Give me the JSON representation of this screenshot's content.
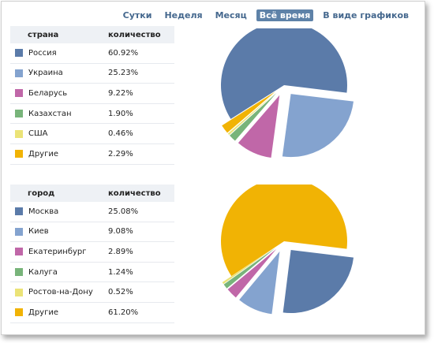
{
  "tabs": [
    {
      "label": "Сутки",
      "active": false
    },
    {
      "label": "Неделя",
      "active": false
    },
    {
      "label": "Месяц",
      "active": false
    },
    {
      "label": "Всё время",
      "active": true
    },
    {
      "label": "В виде графиков",
      "active": false
    }
  ],
  "country_table": {
    "col1": "страна",
    "col2": "количество",
    "rows": [
      {
        "label": "Россия",
        "value": "60.92%",
        "color": "#5b7ba9"
      },
      {
        "label": "Украина",
        "value": "25.23%",
        "color": "#84a3cf"
      },
      {
        "label": "Беларусь",
        "value": "9.22%",
        "color": "#c067a8"
      },
      {
        "label": "Казахстан",
        "value": "1.90%",
        "color": "#78b47a"
      },
      {
        "label": "США",
        "value": "0.46%",
        "color": "#ebe377"
      },
      {
        "label": "Другие",
        "value": "2.29%",
        "color": "#f1b304"
      }
    ]
  },
  "city_table": {
    "col1": "город",
    "col2": "количество",
    "rows": [
      {
        "label": "Москва",
        "value": "25.08%",
        "color": "#5b7ba9"
      },
      {
        "label": "Киев",
        "value": "9.08%",
        "color": "#84a3cf"
      },
      {
        "label": "Екатеринбург",
        "value": "2.89%",
        "color": "#c067a8"
      },
      {
        "label": "Калуга",
        "value": "1.24%",
        "color": "#78b47a"
      },
      {
        "label": "Ростов-на-Дону",
        "value": "0.52%",
        "color": "#ebe377"
      },
      {
        "label": "Другие",
        "value": "61.20%",
        "color": "#f1b304"
      }
    ]
  },
  "chart_data": [
    {
      "type": "pie",
      "categories": [
        "Россия",
        "Украина",
        "Беларусь",
        "Казахстан",
        "США",
        "Другие"
      ],
      "values": [
        60.92,
        25.23,
        9.22,
        1.9,
        0.46,
        2.29
      ],
      "colors": [
        "#5b7ba9",
        "#84a3cf",
        "#c067a8",
        "#78b47a",
        "#ebe377",
        "#f1b304"
      ]
    },
    {
      "type": "pie",
      "categories": [
        "Москва",
        "Киев",
        "Екатеринбург",
        "Калуга",
        "Ростов-на-Дону",
        "Другие"
      ],
      "values": [
        25.08,
        9.08,
        2.89,
        1.24,
        0.52,
        61.2
      ],
      "colors": [
        "#5b7ba9",
        "#84a3cf",
        "#c067a8",
        "#78b47a",
        "#ebe377",
        "#f1b304"
      ]
    }
  ]
}
